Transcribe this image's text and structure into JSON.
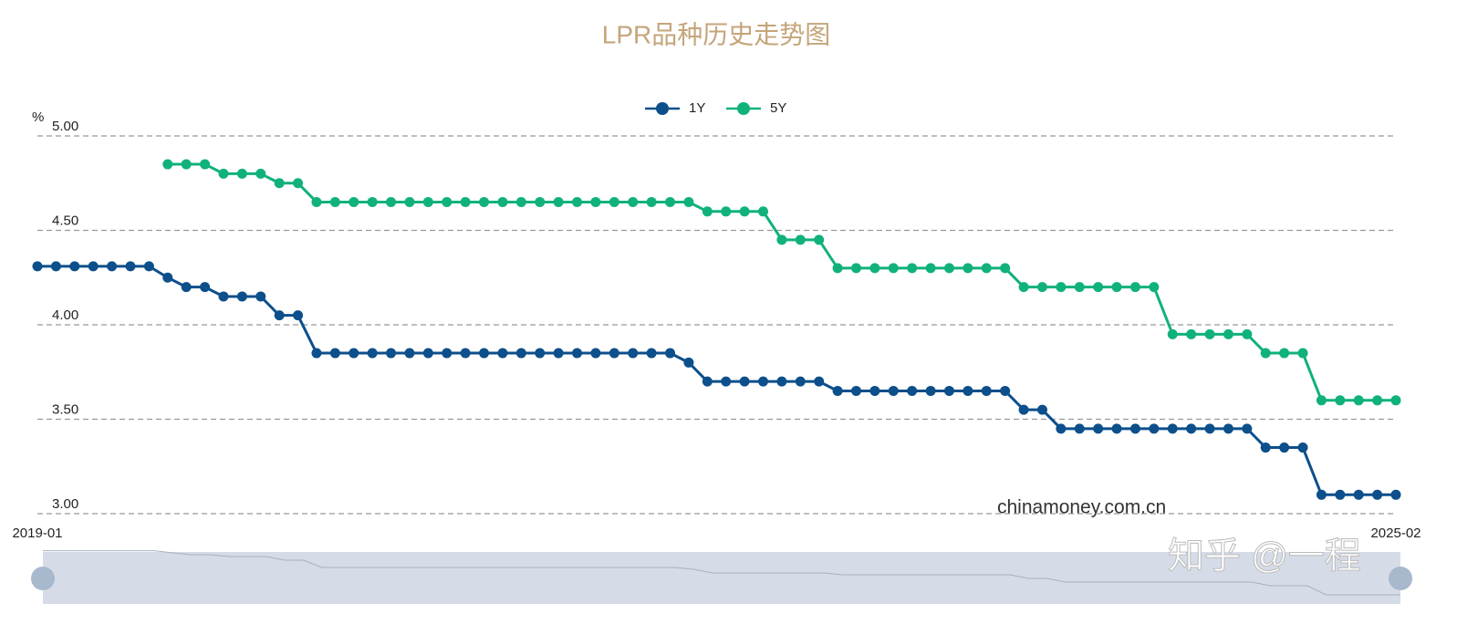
{
  "chart_data": {
    "type": "line",
    "title": "LPR品种历史走势图",
    "y_label": "%",
    "annotations": [
      "chinamoney.com.cn",
      "知乎 @一程"
    ],
    "categories": [
      "2019-01",
      null,
      null,
      null,
      null,
      null,
      null,
      null,
      null,
      null,
      null,
      null,
      null,
      null,
      null,
      null,
      null,
      null,
      null,
      null,
      null,
      null,
      null,
      null,
      null,
      null,
      null,
      null,
      null,
      null,
      null,
      null,
      null,
      null,
      null,
      null,
      null,
      null,
      null,
      null,
      null,
      null,
      null,
      null,
      null,
      null,
      null,
      null,
      null,
      null,
      null,
      null,
      null,
      null,
      null,
      null,
      null,
      null,
      null,
      null,
      null,
      null,
      null,
      null,
      null,
      null,
      null,
      null,
      null,
      null,
      null,
      null,
      null,
      "2025-02"
    ],
    "series": [
      {
        "name": "1Y",
        "color": "#0d4f8b",
        "values": [
          4.31,
          4.31,
          4.31,
          4.31,
          4.31,
          4.31,
          4.31,
          4.25,
          4.2,
          4.2,
          4.15,
          4.15,
          4.15,
          4.05,
          4.05,
          3.85,
          3.85,
          3.85,
          3.85,
          3.85,
          3.85,
          3.85,
          3.85,
          3.85,
          3.85,
          3.85,
          3.85,
          3.85,
          3.85,
          3.85,
          3.85,
          3.85,
          3.85,
          3.85,
          3.85,
          3.8,
          3.7,
          3.7,
          3.7,
          3.7,
          3.7,
          3.7,
          3.7,
          3.65,
          3.65,
          3.65,
          3.65,
          3.65,
          3.65,
          3.65,
          3.65,
          3.65,
          3.65,
          3.55,
          3.55,
          3.45,
          3.45,
          3.45,
          3.45,
          3.45,
          3.45,
          3.45,
          3.45,
          3.45,
          3.45,
          3.45,
          3.35,
          3.35,
          3.35,
          3.1,
          3.1,
          3.1,
          3.1,
          3.1
        ]
      },
      {
        "name": "5Y",
        "color": "#10b27a",
        "values": [
          null,
          null,
          null,
          null,
          null,
          null,
          null,
          4.85,
          4.85,
          4.85,
          4.8,
          4.8,
          4.8,
          4.75,
          4.75,
          4.65,
          4.65,
          4.65,
          4.65,
          4.65,
          4.65,
          4.65,
          4.65,
          4.65,
          4.65,
          4.65,
          4.65,
          4.65,
          4.65,
          4.65,
          4.65,
          4.65,
          4.65,
          4.65,
          4.65,
          4.65,
          4.6,
          4.6,
          4.6,
          4.6,
          4.45,
          4.45,
          4.45,
          4.3,
          4.3,
          4.3,
          4.3,
          4.3,
          4.3,
          4.3,
          4.3,
          4.3,
          4.3,
          4.2,
          4.2,
          4.2,
          4.2,
          4.2,
          4.2,
          4.2,
          4.2,
          3.95,
          3.95,
          3.95,
          3.95,
          3.95,
          3.85,
          3.85,
          3.85,
          3.6,
          3.6,
          3.6,
          3.6,
          3.6
        ]
      }
    ],
    "ylim": [
      3,
      5
    ],
    "yticks": [
      {
        "value": 3,
        "label": "3.00"
      },
      {
        "value": 3.5,
        "label": "3.50"
      },
      {
        "value": 4,
        "label": "4.00"
      },
      {
        "value": 4.5,
        "label": "4.50"
      },
      {
        "value": 5,
        "label": "5.00"
      }
    ],
    "grid": true
  }
}
